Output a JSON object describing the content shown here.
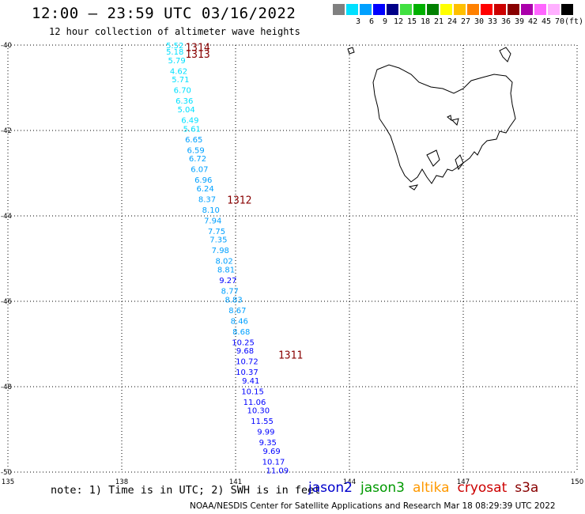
{
  "header": {
    "title": "12:00 – 23:59 UTC 03/16/2022",
    "subtitle": "12 hour collection of altimeter wave heights"
  },
  "legend": {
    "swatches": [
      {
        "color": "#808080",
        "label": ""
      },
      {
        "color": "#00e0ff",
        "label": "3"
      },
      {
        "color": "#00a0ff",
        "label": "6"
      },
      {
        "color": "#0000ff",
        "label": "9"
      },
      {
        "color": "#000088",
        "label": "12"
      },
      {
        "color": "#40e040",
        "label": "15"
      },
      {
        "color": "#00b000",
        "label": "18"
      },
      {
        "color": "#008000",
        "label": "21"
      },
      {
        "color": "#ffff00",
        "label": "24"
      },
      {
        "color": "#ffc000",
        "label": "27"
      },
      {
        "color": "#ff8000",
        "label": "30"
      },
      {
        "color": "#ff0000",
        "label": "33"
      },
      {
        "color": "#cc0000",
        "label": "36"
      },
      {
        "color": "#880000",
        "label": "39"
      },
      {
        "color": "#aa00aa",
        "label": "42"
      },
      {
        "color": "#ff66ff",
        "label": "45"
      },
      {
        "color": "#ffb0ff",
        "label": "70"
      },
      {
        "color": "#000000",
        "label": "(ft)"
      }
    ]
  },
  "note": "note: 1) Time is in UTC; 2) SWH is in feet",
  "credit": "NOAA/NESDIS Center for Satellite Applications and Research   Mar 18 08:29:39 UTC 2022",
  "satellites": [
    {
      "name": "jason2",
      "color": "#0000cc"
    },
    {
      "name": "jason3",
      "color": "#009900"
    },
    {
      "name": "altika",
      "color": "#ff9900"
    },
    {
      "name": "cryosat",
      "color": "#cc0000"
    },
    {
      "name": "s3a",
      "color": "#880000"
    }
  ],
  "chart_data": {
    "type": "scatter",
    "xlim": [
      135,
      150
    ],
    "ylim": [
      -50,
      -40
    ],
    "x_ticks": [
      "135",
      "138",
      "141",
      "144",
      "147",
      "150"
    ],
    "y_ticks": [
      "-40",
      "-42",
      "-44",
      "-46",
      "-48",
      "-50"
    ],
    "grid": true,
    "pass_labels": [
      {
        "text": "1314",
        "lon": 140.0,
        "lat": -40.05,
        "color": "#880000"
      },
      {
        "text": "1313",
        "lon": 140.0,
        "lat": -40.2,
        "color": "#880000"
      },
      {
        "text": "1312",
        "lon": 141.1,
        "lat": -43.62,
        "color": "#880000"
      },
      {
        "text": "1311",
        "lon": 142.45,
        "lat": -47.25,
        "color": "#880000"
      }
    ],
    "series": [
      {
        "color": "#00e0ff",
        "points": [
          {
            "lon": 139.4,
            "lat": -40.0,
            "v": "5.52"
          },
          {
            "lon": 139.4,
            "lat": -40.15,
            "v": "5.18"
          },
          {
            "lon": 139.45,
            "lat": -40.35,
            "v": "5.79"
          },
          {
            "lon": 139.5,
            "lat": -40.6,
            "v": "4.62"
          },
          {
            "lon": 139.55,
            "lat": -40.8,
            "v": "5.71"
          },
          {
            "lon": 139.6,
            "lat": -41.05,
            "v": "6.70"
          },
          {
            "lon": 139.65,
            "lat": -41.3,
            "v": "6.36"
          },
          {
            "lon": 139.7,
            "lat": -41.5,
            "v": "5.04"
          },
          {
            "lon": 139.8,
            "lat": -41.75,
            "v": "6.49"
          },
          {
            "lon": 139.85,
            "lat": -41.95,
            "v": "5.61"
          }
        ]
      },
      {
        "color": "#00a0ff",
        "points": [
          {
            "lon": 139.9,
            "lat": -42.2,
            "v": "6.65"
          },
          {
            "lon": 139.95,
            "lat": -42.45,
            "v": "6.59"
          },
          {
            "lon": 140.0,
            "lat": -42.65,
            "v": "6.72"
          },
          {
            "lon": 140.05,
            "lat": -42.9,
            "v": "6.07"
          },
          {
            "lon": 140.15,
            "lat": -43.15,
            "v": "6.96"
          },
          {
            "lon": 140.2,
            "lat": -43.35,
            "v": "6.24"
          },
          {
            "lon": 140.25,
            "lat": -43.6,
            "v": "8.37"
          },
          {
            "lon": 140.35,
            "lat": -43.85,
            "v": "8.10"
          },
          {
            "lon": 140.4,
            "lat": -44.1,
            "v": "7.94"
          },
          {
            "lon": 140.5,
            "lat": -44.35,
            "v": "7.75"
          },
          {
            "lon": 140.55,
            "lat": -44.55,
            "v": "7.35"
          },
          {
            "lon": 140.6,
            "lat": -44.8,
            "v": "7.98"
          },
          {
            "lon": 140.7,
            "lat": -45.05,
            "v": "8.02"
          },
          {
            "lon": 140.75,
            "lat": -45.25,
            "v": "8.81"
          }
        ]
      },
      {
        "color": "#0000ff",
        "points": [
          {
            "lon": 140.8,
            "lat": -45.5,
            "v": "9.27"
          }
        ]
      },
      {
        "color": "#00a0ff",
        "points": [
          {
            "lon": 140.85,
            "lat": -45.75,
            "v": "8.77"
          },
          {
            "lon": 140.95,
            "lat": -45.95,
            "v": "8.83"
          },
          {
            "lon": 141.05,
            "lat": -46.2,
            "v": "8.67"
          },
          {
            "lon": 141.1,
            "lat": -46.45,
            "v": "8.46"
          },
          {
            "lon": 141.15,
            "lat": -46.7,
            "v": "8.68"
          }
        ]
      },
      {
        "color": "#0000ff",
        "points": [
          {
            "lon": 141.2,
            "lat": -46.95,
            "v": "10.25"
          },
          {
            "lon": 141.25,
            "lat": -47.15,
            "v": "9.68"
          },
          {
            "lon": 141.3,
            "lat": -47.4,
            "v": "10.72"
          },
          {
            "lon": 141.3,
            "lat": -47.65,
            "v": "10.37"
          },
          {
            "lon": 141.4,
            "lat": -47.85,
            "v": "9.41"
          },
          {
            "lon": 141.45,
            "lat": -48.1,
            "v": "10.15"
          },
          {
            "lon": 141.5,
            "lat": -48.35,
            "v": "11.06"
          },
          {
            "lon": 141.6,
            "lat": -48.55,
            "v": "10.30"
          },
          {
            "lon": 141.7,
            "lat": -48.8,
            "v": "11.55"
          },
          {
            "lon": 141.8,
            "lat": -49.05,
            "v": "9.99"
          },
          {
            "lon": 141.85,
            "lat": -49.3,
            "v": "9.35"
          },
          {
            "lon": 141.95,
            "lat": -49.5,
            "v": "9.69"
          },
          {
            "lon": 142.0,
            "lat": -49.75,
            "v": "10.17"
          },
          {
            "lon": 142.1,
            "lat": -49.95,
            "v": "11.09"
          }
        ]
      }
    ]
  }
}
